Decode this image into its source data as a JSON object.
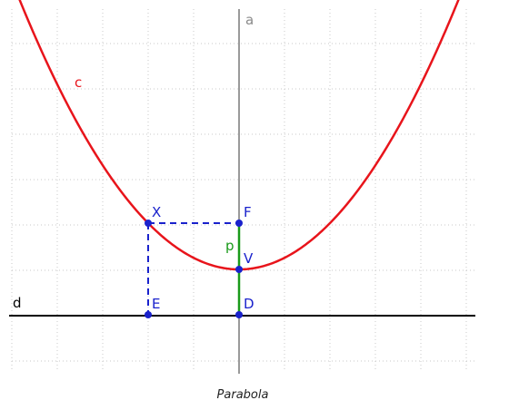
{
  "diagram": {
    "caption": "Parabola",
    "labels": {
      "axis": "a",
      "curve": "c",
      "directrix": "d",
      "focus": "F",
      "vertex": "V",
      "directrix_foot": "D",
      "point": "X",
      "projection": "E",
      "param": "p"
    },
    "colors": {
      "curve": "#e8141b",
      "points": "#1a22cc",
      "param": "#1a9a1a",
      "axis": "#9a9a9a",
      "directrix": "#000000",
      "grid": "#c8c8c8"
    }
  }
}
